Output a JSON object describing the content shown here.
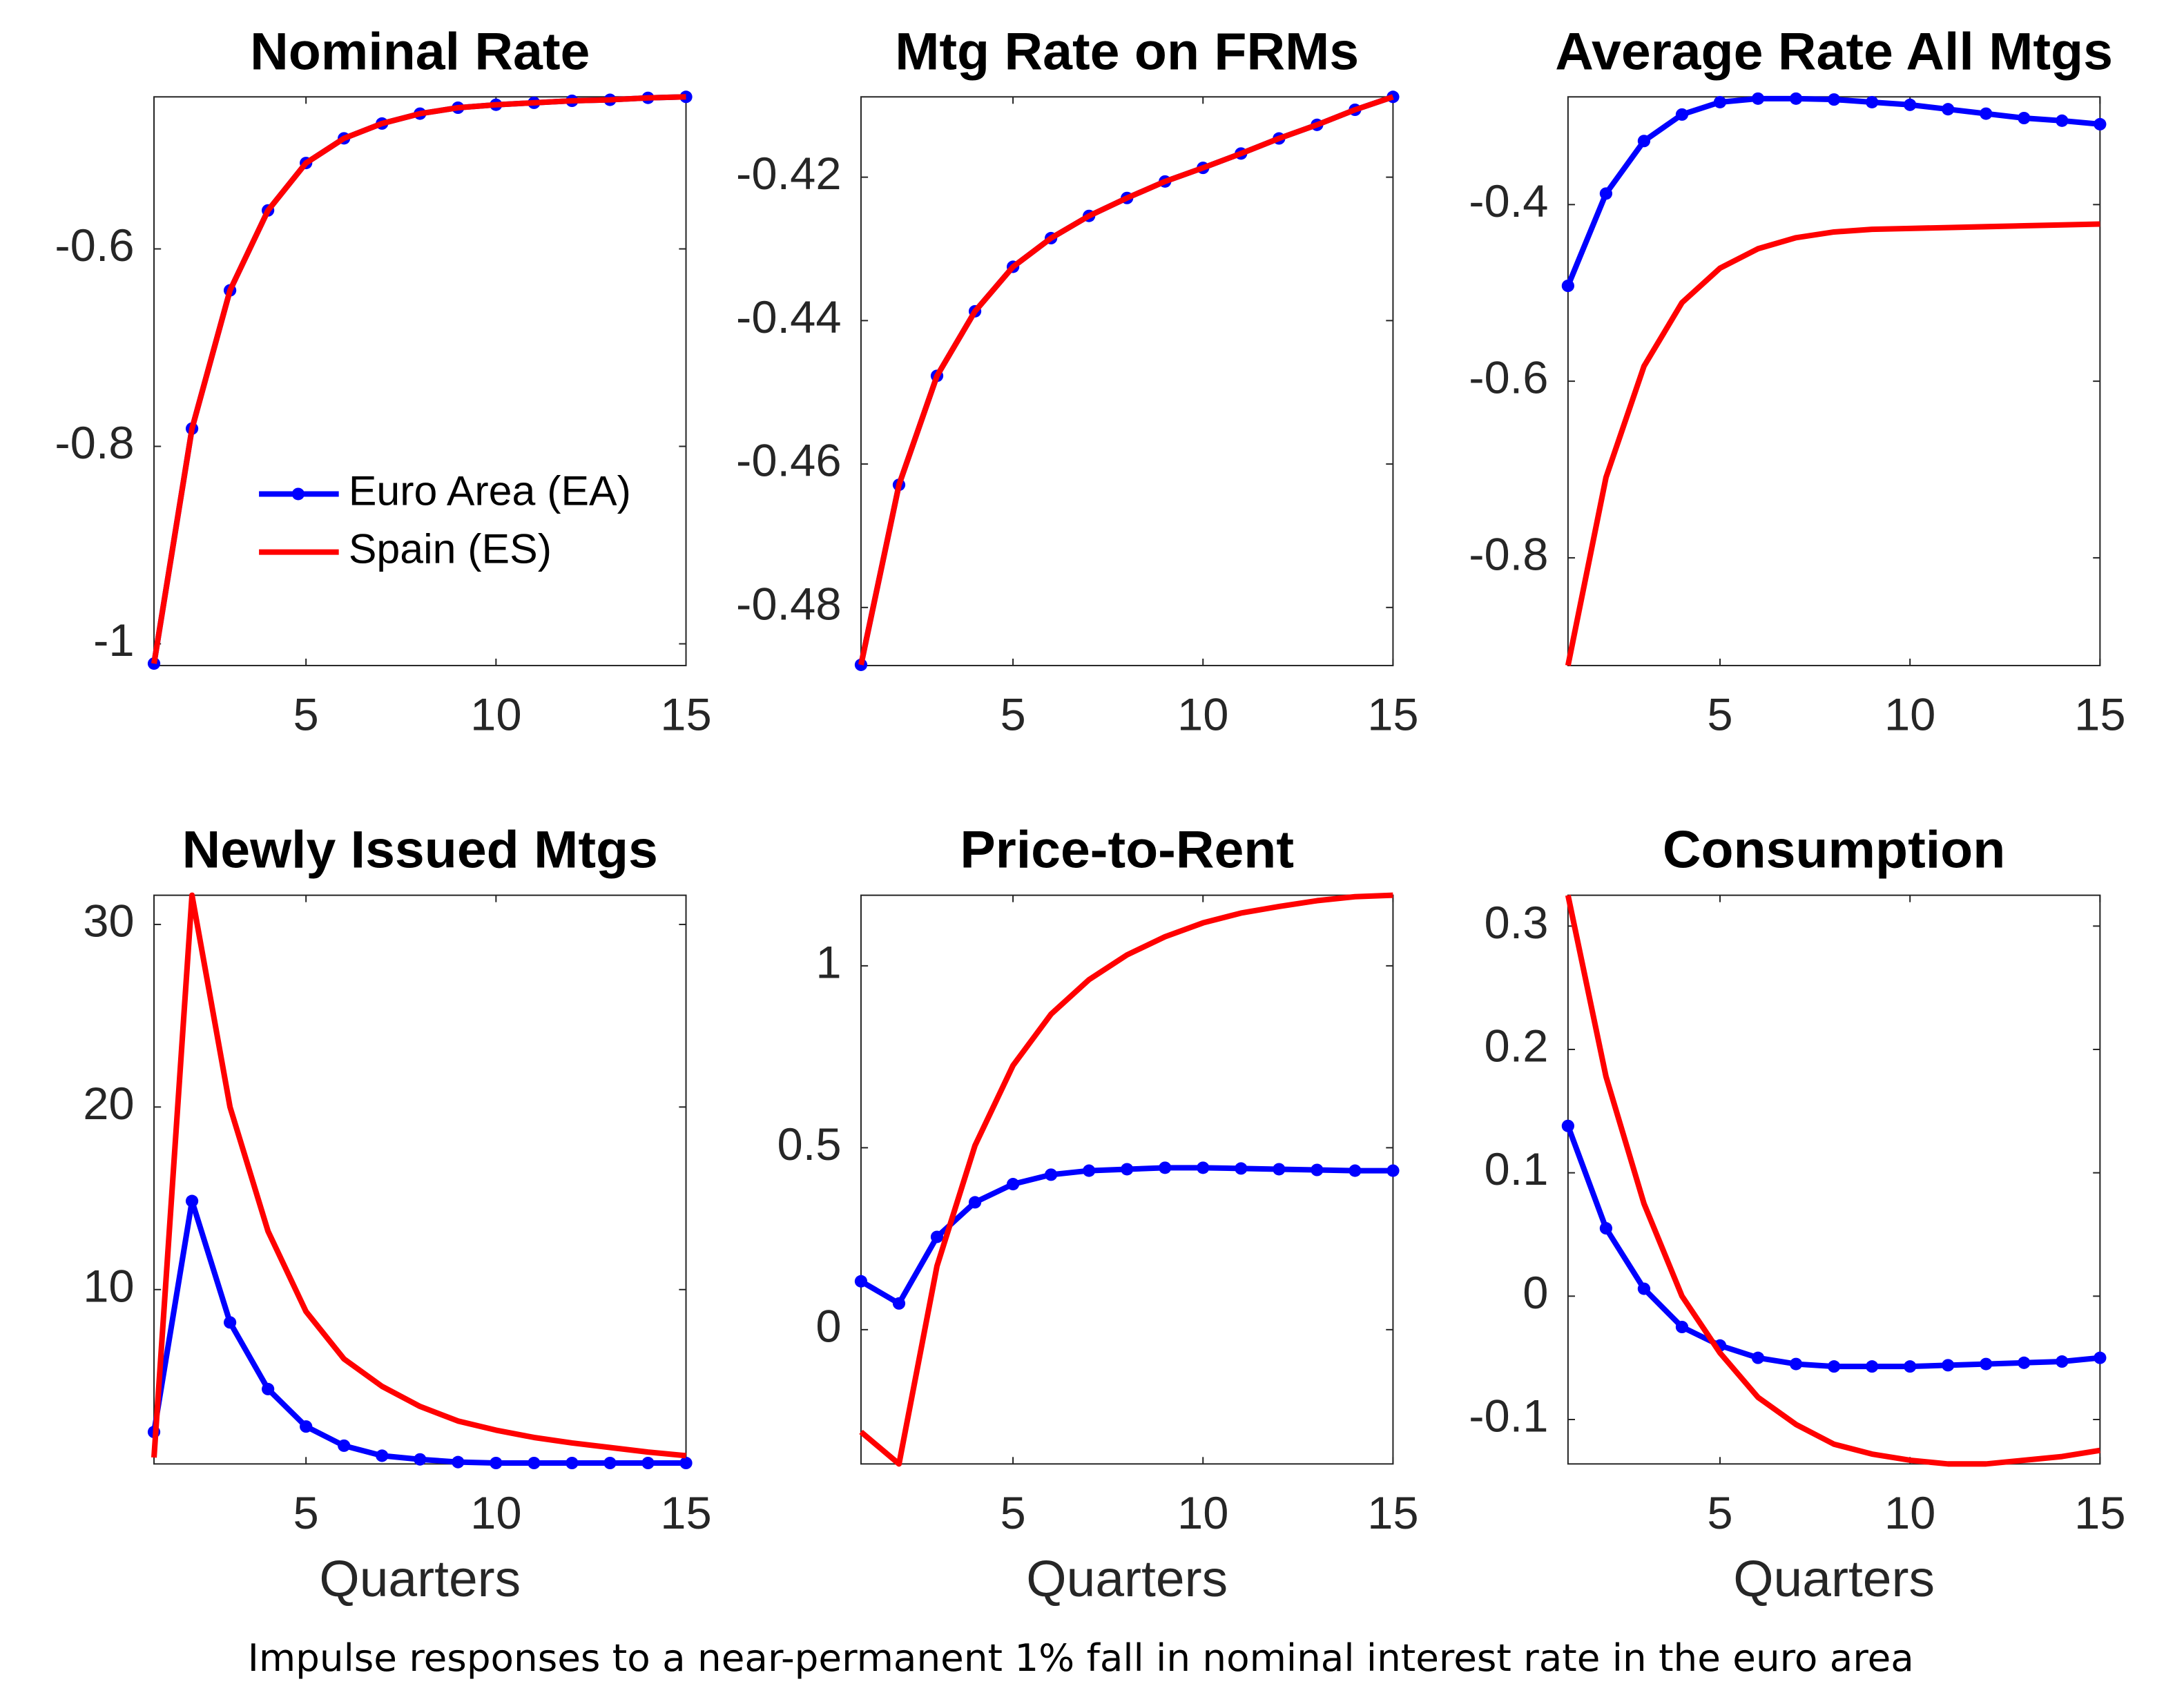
{
  "chart_data": [
    {
      "type": "line",
      "title": "Nominal Rate",
      "x": [
        1,
        2,
        3,
        4,
        5,
        6,
        7,
        8,
        9,
        10,
        11,
        12,
        13,
        14,
        15
      ],
      "xlim": [
        1,
        15
      ],
      "xticks": [
        5,
        10,
        15
      ],
      "ylim": [
        -1.022,
        -0.446
      ],
      "yticks": [
        -1,
        -0.8,
        -0.6
      ],
      "legend": "lower right",
      "series": [
        {
          "name": "Euro Area (EA)",
          "color": "#0000ff",
          "marker": "o",
          "values": [
            -1.02,
            -0.782,
            -0.642,
            -0.561,
            -0.513,
            -0.488,
            -0.473,
            -0.463,
            -0.457,
            -0.454,
            -0.452,
            -0.45,
            -0.449,
            -0.447,
            -0.446
          ]
        },
        {
          "name": "Spain (ES)",
          "color": "#ff0000",
          "values": [
            -1.02,
            -0.782,
            -0.642,
            -0.561,
            -0.513,
            -0.488,
            -0.473,
            -0.463,
            -0.457,
            -0.454,
            -0.452,
            -0.45,
            -0.449,
            -0.447,
            -0.446
          ]
        }
      ]
    },
    {
      "type": "line",
      "title": "Mtg Rate on FRMs",
      "x": [
        1,
        2,
        3,
        4,
        5,
        6,
        7,
        8,
        9,
        10,
        11,
        12,
        13,
        14,
        15
      ],
      "xlim": [
        1,
        15
      ],
      "xticks": [
        5,
        10,
        15
      ],
      "ylim": [
        -0.4881,
        -0.4088
      ],
      "yticks": [
        -0.48,
        -0.46,
        -0.44,
        -0.42
      ],
      "series": [
        {
          "color": "#0000ff",
          "marker": "o",
          "values": [
            -0.488,
            -0.4629,
            -0.4477,
            -0.4387,
            -0.4325,
            -0.4285,
            -0.4254,
            -0.4229,
            -0.4206,
            -0.4187,
            -0.4167,
            -0.4146,
            -0.4127,
            -0.4106,
            -0.4088
          ]
        },
        {
          "color": "#ff0000",
          "values": [
            -0.488,
            -0.4629,
            -0.4477,
            -0.4387,
            -0.4325,
            -0.4285,
            -0.4254,
            -0.4229,
            -0.4206,
            -0.4187,
            -0.4167,
            -0.4146,
            -0.4127,
            -0.4106,
            -0.4088
          ]
        }
      ]
    },
    {
      "type": "line",
      "title": "Average Rate All Mtgs",
      "x": [
        1,
        2,
        3,
        4,
        5,
        6,
        7,
        8,
        9,
        10,
        11,
        12,
        13,
        14,
        15
      ],
      "xlim": [
        1,
        15
      ],
      "xticks": [
        5,
        10,
        15
      ],
      "ylim": [
        -0.922,
        -0.278
      ],
      "yticks": [
        -0.8,
        -0.6,
        -0.4
      ],
      "series": [
        {
          "color": "#0000ff",
          "marker": "o",
          "values": [
            -0.492,
            -0.3875,
            -0.328,
            -0.298,
            -0.284,
            -0.28,
            -0.28,
            -0.281,
            -0.284,
            -0.287,
            -0.292,
            -0.297,
            -0.302,
            -0.305,
            -0.309
          ]
        },
        {
          "color": "#ff0000",
          "values": [
            -0.922,
            -0.709,
            -0.583,
            -0.511,
            -0.472,
            -0.45,
            -0.4375,
            -0.431,
            -0.428,
            -0.427,
            -0.426,
            -0.425,
            -0.424,
            -0.423,
            -0.422
          ]
        }
      ]
    },
    {
      "type": "line",
      "title": "Newly Issued Mtgs",
      "xlabel": "Quarters",
      "x": [
        1,
        2,
        3,
        4,
        5,
        6,
        7,
        8,
        9,
        10,
        11,
        12,
        13,
        14,
        15
      ],
      "xlim": [
        1,
        15
      ],
      "xticks": [
        5,
        10,
        15
      ],
      "ylim": [
        0.45,
        31.6
      ],
      "yticks": [
        10,
        20,
        30
      ],
      "series": [
        {
          "color": "#0000ff",
          "marker": "o",
          "values": [
            2.2,
            14.85,
            8.2,
            4.55,
            2.5,
            1.45,
            0.9,
            0.7,
            0.55,
            0.5,
            0.5,
            0.5,
            0.5,
            0.5,
            0.5
          ]
        },
        {
          "color": "#ff0000",
          "values": [
            0.8,
            31.6,
            20,
            13.2,
            8.8,
            6.2,
            4.7,
            3.6,
            2.8,
            2.3,
            1.9,
            1.6,
            1.35,
            1.1,
            0.9
          ]
        }
      ]
    },
    {
      "type": "line",
      "title": "Price-to-Rent",
      "xlabel": "Quarters",
      "x": [
        1,
        2,
        3,
        4,
        5,
        6,
        7,
        8,
        9,
        10,
        11,
        12,
        13,
        14,
        15
      ],
      "xlim": [
        1,
        15
      ],
      "xticks": [
        5,
        10,
        15
      ],
      "ylim": [
        -0.369,
        1.194
      ],
      "yticks": [
        0,
        0.5,
        1
      ],
      "series": [
        {
          "color": "#0000ff",
          "marker": "o",
          "values": [
            0.133,
            0.072,
            0.255,
            0.35,
            0.4,
            0.426,
            0.437,
            0.441,
            0.445,
            0.445,
            0.443,
            0.441,
            0.439,
            0.437,
            0.437
          ]
        },
        {
          "color": "#ff0000",
          "values": [
            -0.281,
            -0.369,
            0.175,
            0.506,
            0.726,
            0.867,
            0.962,
            1.03,
            1.08,
            1.118,
            1.145,
            1.163,
            1.179,
            1.19,
            1.194
          ]
        }
      ]
    },
    {
      "type": "line",
      "title": "Consumption",
      "xlabel": "Quarters",
      "x": [
        1,
        2,
        3,
        4,
        5,
        6,
        7,
        8,
        9,
        10,
        11,
        12,
        13,
        14,
        15
      ],
      "xlim": [
        1,
        15
      ],
      "xticks": [
        5,
        10,
        15
      ],
      "ylim": [
        -0.136,
        0.325
      ],
      "yticks": [
        -0.1,
        0,
        0.1,
        0.2,
        0.3
      ],
      "series": [
        {
          "color": "#0000ff",
          "marker": "o",
          "values": [
            0.138,
            0.055,
            0.006,
            -0.025,
            -0.04,
            -0.05,
            -0.055,
            -0.057,
            -0.057,
            -0.057,
            -0.056,
            -0.055,
            -0.054,
            -0.053,
            -0.05
          ]
        },
        {
          "color": "#ff0000",
          "values": [
            0.325,
            0.178,
            0.075,
            0,
            -0.046,
            -0.082,
            -0.104,
            -0.12,
            -0.128,
            -0.133,
            -0.136,
            -0.136,
            -0.133,
            -0.13,
            -0.125
          ]
        }
      ]
    }
  ],
  "caption": "Impulse responses to a near-permanent 1% fall in nominal interest rate in the euro area"
}
